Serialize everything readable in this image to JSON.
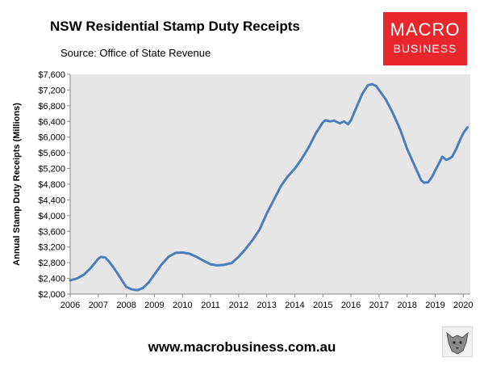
{
  "header": {
    "title": "NSW Residential Stamp Duty Receipts",
    "subtitle": "Source: Office of State Revenue"
  },
  "logo": {
    "line1": "MACRO",
    "line2": "BUSINESS",
    "color": "#e8262d"
  },
  "footer": {
    "url": "www.macrobusiness.com.au"
  },
  "chart_data": {
    "type": "line",
    "title": "NSW Residential Stamp Duty Receipts",
    "subtitle": "Source: Office of State Revenue",
    "xlabel": "",
    "ylabel": "Annual Stamp Duty Receipts (Millions)",
    "xlim": [
      2006,
      2020.25
    ],
    "ylim": [
      2000,
      7600
    ],
    "x_ticks": [
      2006,
      2007,
      2008,
      2009,
      2010,
      2011,
      2012,
      2013,
      2014,
      2015,
      2016,
      2017,
      2018,
      2019,
      2020
    ],
    "x_tick_labels": [
      "2006",
      "2007",
      "2008",
      "2009",
      "2010",
      "2011",
      "2012",
      "2013",
      "2014",
      "2015",
      "2016",
      "2017",
      "2018",
      "2019",
      "2020"
    ],
    "y_ticks": [
      2000,
      2400,
      2800,
      3200,
      3600,
      4000,
      4400,
      4800,
      5200,
      5600,
      6000,
      6400,
      6800,
      7200,
      7600
    ],
    "y_tick_labels": [
      "$2,000",
      "$2,400",
      "$2,800",
      "$3,200",
      "$3,600",
      "$4,000",
      "$4,400",
      "$4,800",
      "$5,200",
      "$5,600",
      "$6,000",
      "$6,400",
      "$6,800",
      "$7,200",
      "$7,600"
    ],
    "plot_background": "#e6e6e6",
    "grid": false,
    "series": [
      {
        "color": "#4a7ebb",
        "x": [
          2006.0,
          2006.25,
          2006.5,
          2006.75,
          2007.0,
          2007.1,
          2007.25,
          2007.4,
          2007.6,
          2007.8,
          2008.0,
          2008.2,
          2008.4,
          2008.6,
          2008.8,
          2009.0,
          2009.25,
          2009.5,
          2009.75,
          2010.0,
          2010.25,
          2010.5,
          2010.75,
          2011.0,
          2011.25,
          2011.5,
          2011.75,
          2012.0,
          2012.25,
          2012.5,
          2012.75,
          2013.0,
          2013.25,
          2013.5,
          2013.75,
          2014.0,
          2014.25,
          2014.5,
          2014.75,
          2015.0,
          2015.1,
          2015.25,
          2015.4,
          2015.6,
          2015.75,
          2015.9,
          2016.0,
          2016.1,
          2016.25,
          2016.4,
          2016.6,
          2016.75,
          2016.9,
          2017.0,
          2017.25,
          2017.5,
          2017.75,
          2018.0,
          2018.25,
          2018.5,
          2018.6,
          2018.75,
          2018.9,
          2019.0,
          2019.15,
          2019.25,
          2019.4,
          2019.5,
          2019.6,
          2019.75,
          2019.9,
          2020.0,
          2020.15
        ],
        "y": [
          2350,
          2400,
          2500,
          2680,
          2900,
          2950,
          2930,
          2820,
          2620,
          2400,
          2180,
          2120,
          2100,
          2160,
          2300,
          2500,
          2750,
          2950,
          3050,
          3060,
          3030,
          2950,
          2850,
          2760,
          2730,
          2750,
          2790,
          2950,
          3150,
          3380,
          3650,
          4050,
          4400,
          4750,
          5000,
          5200,
          5450,
          5750,
          6100,
          6380,
          6430,
          6400,
          6420,
          6350,
          6400,
          6330,
          6430,
          6600,
          6850,
          7100,
          7320,
          7350,
          7300,
          7200,
          6950,
          6600,
          6200,
          5700,
          5300,
          4900,
          4840,
          4850,
          5000,
          5150,
          5350,
          5500,
          5420,
          5450,
          5500,
          5700,
          5950,
          6100,
          6250
        ]
      }
    ]
  }
}
